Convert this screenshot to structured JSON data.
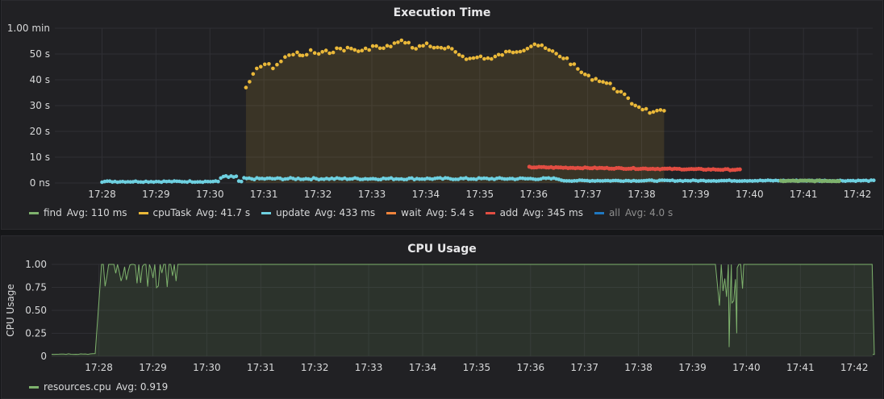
{
  "panels": {
    "exec": {
      "title": "Execution Time",
      "legend": [
        {
          "name": "find",
          "avg": "Avg: 110 ms",
          "color": "#7eb26d",
          "muted": false
        },
        {
          "name": "cpuTask",
          "avg": "Avg: 41.7 s",
          "color": "#eab839",
          "muted": false
        },
        {
          "name": "update",
          "avg": "Avg: 433 ms",
          "color": "#6ed0e0",
          "muted": false
        },
        {
          "name": "wait",
          "avg": "Avg: 5.4 s",
          "color": "#ef843c",
          "muted": false
        },
        {
          "name": "add",
          "avg": "Avg: 345 ms",
          "color": "#e24d42",
          "muted": false
        },
        {
          "name": "all",
          "avg": "Avg: 4.0 s",
          "color": "#1f78c1",
          "muted": true
        }
      ]
    },
    "cpu": {
      "title": "CPU Usage",
      "ylabel": "CPU Usage",
      "legend": [
        {
          "name": "resources.cpu",
          "avg": "Avg: 0.919",
          "color": "#7eb26d",
          "muted": false
        }
      ]
    }
  },
  "chart_data": [
    {
      "type": "scatter",
      "title": "Execution Time",
      "xlabel": "",
      "ylabel": "",
      "x_ticks": [
        "17:28",
        "17:29",
        "17:30",
        "17:31",
        "17:32",
        "17:33",
        "17:34",
        "17:35",
        "17:36",
        "17:37",
        "17:38",
        "17:39",
        "17:40",
        "17:41",
        "17:42"
      ],
      "y_ticks": [
        "0 ns",
        "10 s",
        "20 s",
        "30 s",
        "40 s",
        "50 s",
        "1.00 min"
      ],
      "ylim": [
        0,
        60
      ],
      "y_unit": "seconds",
      "x_unit": "minutes since 17:28",
      "grid": true,
      "legend_position": "bottom",
      "series": [
        {
          "name": "cpuTask",
          "color": "#eab839",
          "fill": true,
          "x": [
            -1.25,
            -1.05,
            -0.9,
            -0.75,
            -0.6,
            -0.45,
            -0.3,
            -0.2,
            -0.05,
            0.1,
            0.3,
            0.5,
            0.7,
            0.9,
            1.1,
            1.3,
            1.5,
            1.7,
            1.9,
            2.1,
            2.3,
            2.5,
            2.7,
            2.9,
            3.1,
            3.3,
            3.5,
            3.7,
            3.9,
            4.1,
            4.3,
            4.5,
            4.7,
            4.9,
            5.1,
            5.3,
            5.5,
            5.7,
            5.9,
            6.1,
            6.3,
            6.5
          ],
          "y": [
            37,
            44,
            46,
            45,
            47,
            50,
            50,
            49,
            51,
            50,
            51,
            52,
            52,
            51,
            53,
            52,
            54,
            55,
            52,
            54,
            52,
            52,
            50,
            48,
            49,
            48,
            50,
            51,
            52,
            54,
            52,
            50,
            48,
            44,
            41,
            40,
            38,
            35,
            31,
            29,
            27,
            28
          ],
          "x_note": "relative to 17:30:40",
          "y_abs": [
            37,
            44,
            46,
            45,
            47,
            50,
            50,
            49,
            51,
            50,
            51,
            52,
            52,
            51,
            53,
            52,
            54,
            55,
            52,
            54,
            52,
            52,
            50,
            48,
            49,
            48,
            50,
            51,
            52,
            54,
            52,
            50,
            48,
            44,
            41,
            40,
            38,
            35,
            31,
            29,
            27,
            28
          ]
        },
        {
          "name": "wait",
          "color": "#ef843c",
          "x_range": [
            "17:35:55",
            "17:39:50"
          ],
          "y": [
            6.0,
            5.8,
            5.6,
            5.5,
            5.4,
            5.3,
            5.2,
            5.1
          ]
        },
        {
          "name": "update",
          "color": "#6ed0e0",
          "x_range": [
            "17:28",
            "17:42:20"
          ],
          "y": [
            0.4,
            0.5,
            0.6,
            1.8,
            1.2,
            1.3,
            1.1,
            1.0,
            0.9,
            1.0,
            0.8,
            0.7,
            0.6,
            0.5
          ]
        },
        {
          "name": "add",
          "color": "#e24d42",
          "x_range": [
            "17:40:35",
            "17:41:40"
          ],
          "y": [
            0.6,
            0.7,
            0.8,
            0.7,
            0.6
          ]
        },
        {
          "name": "find",
          "color": "#7eb26d",
          "y": [
            0.1
          ]
        },
        {
          "name": "all",
          "color": "#1f78c1",
          "y": [
            4.0
          ]
        }
      ]
    },
    {
      "type": "line",
      "title": "CPU Usage",
      "xlabel": "",
      "ylabel": "CPU Usage",
      "x_ticks": [
        "17:28",
        "17:29",
        "17:30",
        "17:31",
        "17:32",
        "17:33",
        "17:34",
        "17:35",
        "17:36",
        "17:37",
        "17:38",
        "17:39",
        "17:40",
        "17:41",
        "17:42"
      ],
      "y_ticks": [
        "0",
        "0.25",
        "0.50",
        "0.75",
        "1.00"
      ],
      "ylim": [
        0,
        1
      ],
      "grid": true,
      "legend_position": "bottom",
      "series": [
        {
          "name": "resources.cpu",
          "color": "#7eb26d",
          "fill": true,
          "x": [
            "17:27:00",
            "17:27:55",
            "17:28:05",
            "17:28:15",
            "17:28:35",
            "17:28:55",
            "17:29:15",
            "17:29:30",
            "17:29:40",
            "17:29:45",
            "17:39:30",
            "17:39:40",
            "17:39:45",
            "17:39:50",
            "17:42:30",
            "17:42:35"
          ],
          "y": [
            0.02,
            0.02,
            0.8,
            1.0,
            0.85,
            1.0,
            0.8,
            1.0,
            0.7,
            1.0,
            1.0,
            0.55,
            0.1,
            1.0,
            1.0,
            0.02
          ]
        }
      ]
    }
  ]
}
